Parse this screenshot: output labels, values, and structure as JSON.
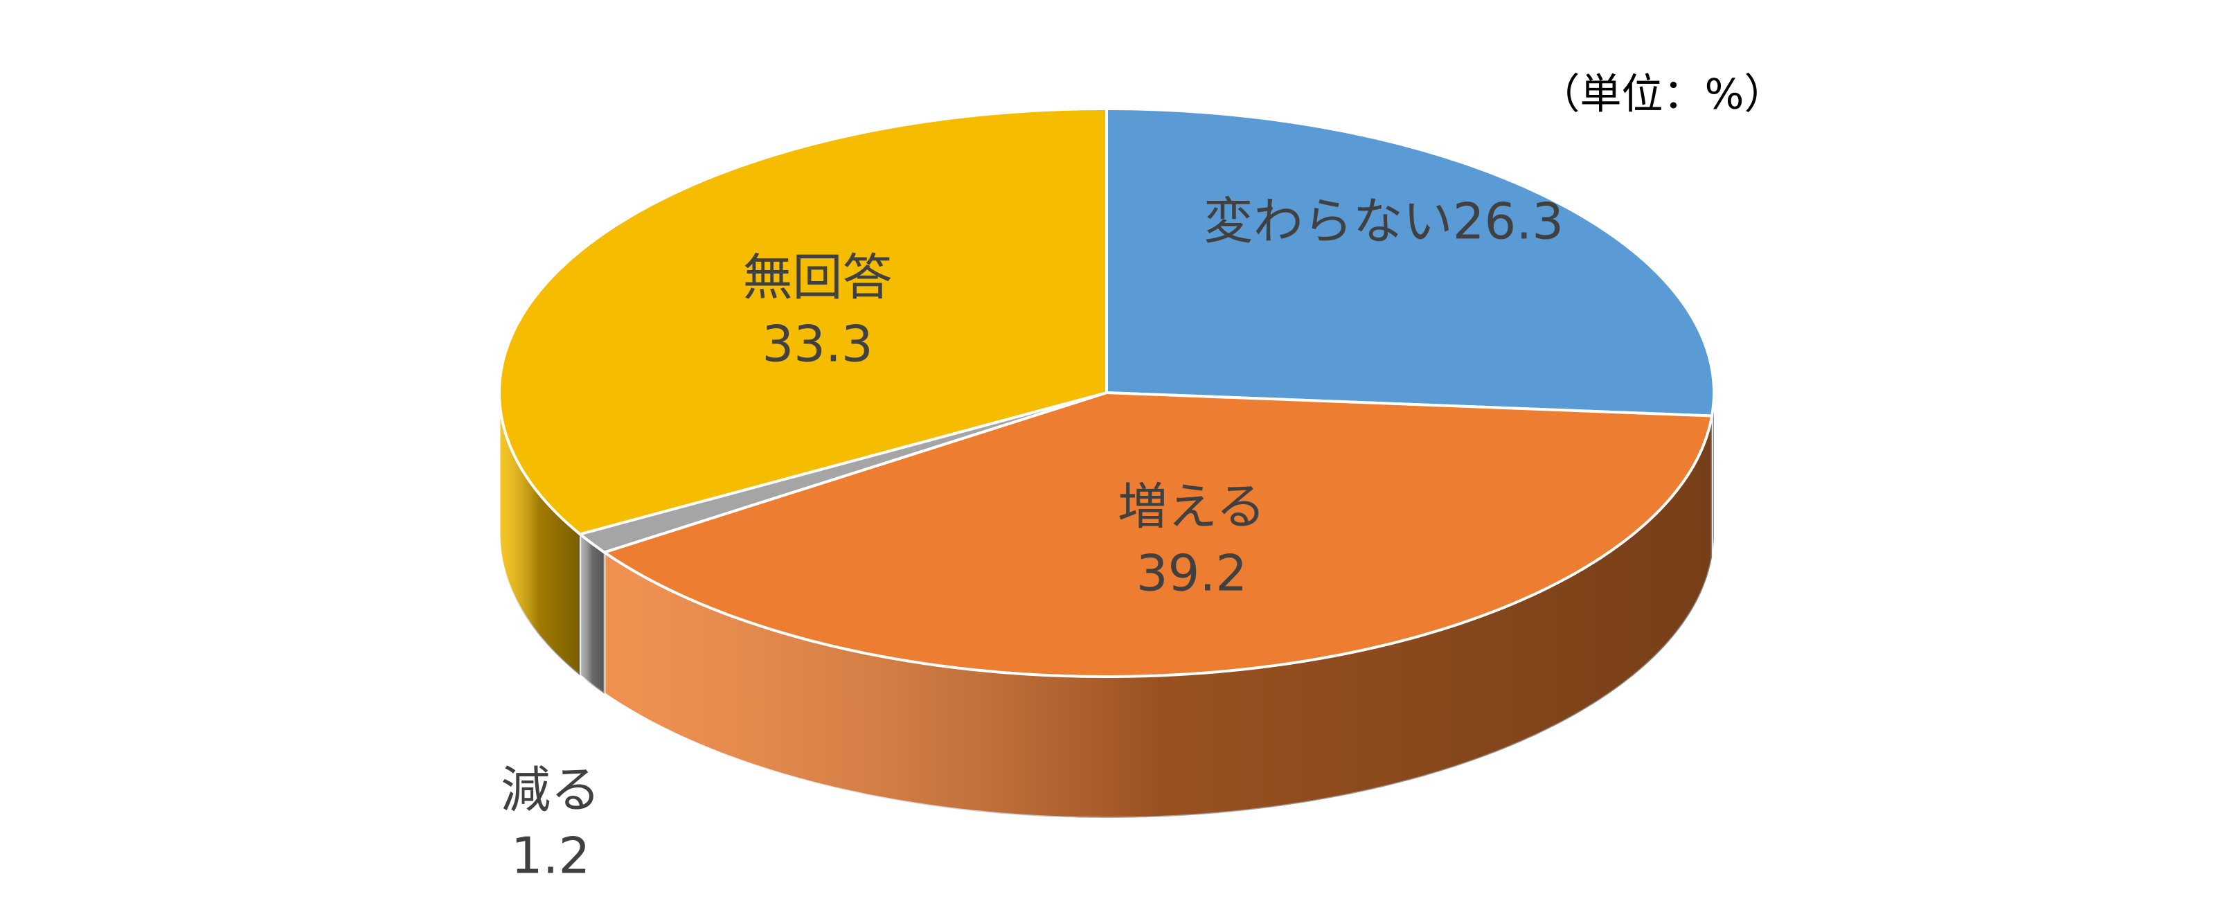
{
  "chart_data": {
    "type": "pie3d",
    "unit_note": "（単位：%）",
    "categories": [
      "変わらない",
      "増える",
      "減る",
      "無回答"
    ],
    "values": [
      26.3,
      39.2,
      1.2,
      33.3
    ],
    "colors": [
      "#5b9bd5",
      "#ed7d31",
      "#a5a5a5",
      "#f5bc00"
    ]
  }
}
